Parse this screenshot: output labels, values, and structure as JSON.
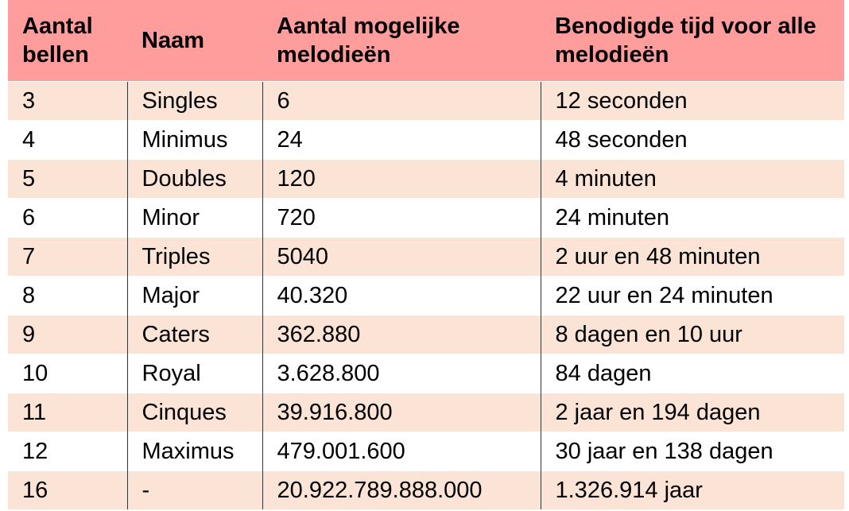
{
  "table": {
    "header": [
      "Aantal bellen",
      "Naam",
      "Aantal mogelijke melodieën",
      "Benodigde tijd voor alle melodieën"
    ],
    "rows": [
      [
        "3",
        "Singles",
        "6",
        "12 seconden"
      ],
      [
        "4",
        "Minimus",
        "24",
        "48 seconden"
      ],
      [
        "5",
        "Doubles",
        "120",
        "4 minuten"
      ],
      [
        "6",
        "Minor",
        "720",
        "24 minuten"
      ],
      [
        "7",
        "Triples",
        "5040",
        "2 uur en 48 minuten"
      ],
      [
        "8",
        "Major",
        "40.320",
        "22 uur en 24 minuten"
      ],
      [
        "9",
        "Caters",
        "362.880",
        "8 dagen en 10 uur"
      ],
      [
        "10",
        "Royal",
        "3.628.800",
        "84 dagen"
      ],
      [
        "11",
        "Cinques",
        "39.916.800",
        "2 jaar en 194 dagen"
      ],
      [
        "12",
        "Maximus",
        "479.001.600",
        "30 jaar en 138 dagen"
      ],
      [
        "16",
        "-",
        "20.922.789.888.000",
        "1.326.914 jaar"
      ]
    ]
  }
}
